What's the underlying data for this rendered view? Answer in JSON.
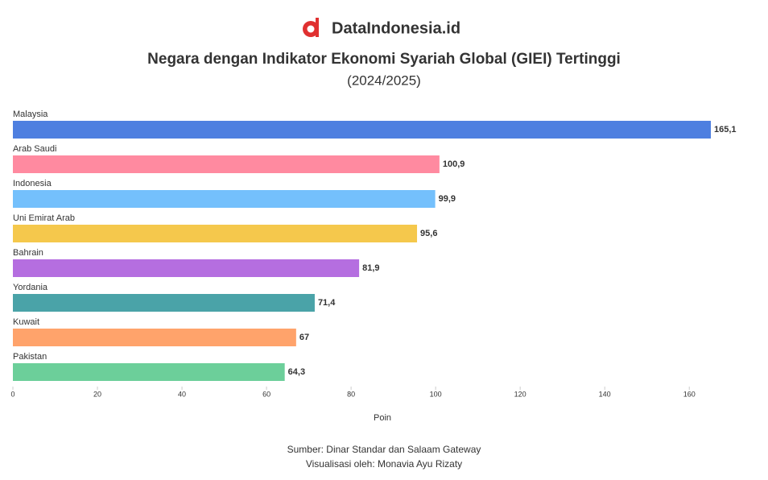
{
  "brand": "DataIndonesia.id",
  "chart_data": {
    "type": "bar",
    "orientation": "horizontal",
    "title": "Negara dengan Indikator Ekonomi Syariah Global (GIEI) Tertinggi",
    "subtitle": "(2024/2025)",
    "categories": [
      "Malaysia",
      "Arab Saudi",
      "Indonesia",
      "Uni Emirat Arab",
      "Bahrain",
      "Yordania",
      "Kuwait",
      "Pakistan"
    ],
    "values": [
      165.1,
      100.9,
      99.9,
      95.6,
      81.9,
      71.4,
      67,
      64.3
    ],
    "value_labels": [
      "165,1",
      "100,9",
      "99,9",
      "95,6",
      "81,9",
      "71,4",
      "67",
      "64,3"
    ],
    "colors": [
      "#4e7fe0",
      "#ff8aa0",
      "#74c0fc",
      "#f5c84c",
      "#b56ee0",
      "#4aa3a8",
      "#ffa36b",
      "#6ccf9a"
    ],
    "xlim": [
      0,
      175
    ],
    "xticks": [
      0,
      20,
      40,
      60,
      80,
      100,
      120,
      140,
      160
    ],
    "xlabel": "Poin",
    "source": "Sumber: Dinar Standar dan Salaam Gateway",
    "credit": "Visualisasi oleh: Monavia Ayu Rizaty"
  }
}
